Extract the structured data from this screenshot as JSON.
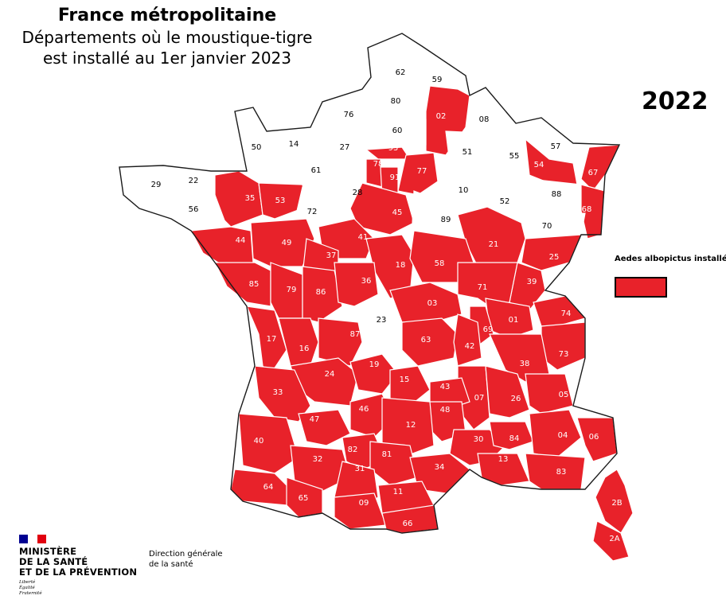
{
  "title": {
    "main": "France métropolitaine",
    "line1": "Départements où le moustique-tigre",
    "line2": "est installé au 1er janvier 2023"
  },
  "year": "2022",
  "legend": {
    "label": "Aedes albopictus installé",
    "color": "#e8222a"
  },
  "colors": {
    "installed": "#e8222a",
    "not_installed": "#ffffff",
    "border": "#ffffff",
    "outline": "#1a1a1a"
  },
  "departments": [
    {
      "code": "62",
      "installed": false
    },
    {
      "code": "59",
      "installed": false
    },
    {
      "code": "80",
      "installed": false
    },
    {
      "code": "02",
      "installed": true
    },
    {
      "code": "60",
      "installed": false
    },
    {
      "code": "76",
      "installed": false
    },
    {
      "code": "08",
      "installed": false
    },
    {
      "code": "57",
      "installed": false
    },
    {
      "code": "50",
      "installed": false
    },
    {
      "code": "14",
      "installed": false
    },
    {
      "code": "27",
      "installed": false
    },
    {
      "code": "95",
      "installed": true
    },
    {
      "code": "51",
      "installed": false
    },
    {
      "code": "55",
      "installed": false
    },
    {
      "code": "67",
      "installed": true
    },
    {
      "code": "78",
      "installed": true
    },
    {
      "code": "77",
      "installed": true
    },
    {
      "code": "54",
      "installed": true
    },
    {
      "code": "61",
      "installed": false
    },
    {
      "code": "91",
      "installed": true
    },
    {
      "code": "29",
      "installed": false
    },
    {
      "code": "22",
      "installed": false
    },
    {
      "code": "28",
      "installed": false
    },
    {
      "code": "10",
      "installed": false
    },
    {
      "code": "52",
      "installed": false
    },
    {
      "code": "88",
      "installed": false
    },
    {
      "code": "35",
      "installed": true
    },
    {
      "code": "53",
      "installed": true
    },
    {
      "code": "72",
      "installed": false
    },
    {
      "code": "56",
      "installed": false
    },
    {
      "code": "45",
      "installed": true
    },
    {
      "code": "89",
      "installed": false
    },
    {
      "code": "68",
      "installed": true
    },
    {
      "code": "70",
      "installed": false
    },
    {
      "code": "44",
      "installed": true
    },
    {
      "code": "49",
      "installed": true
    },
    {
      "code": "41",
      "installed": true
    },
    {
      "code": "21",
      "installed": true
    },
    {
      "code": "25",
      "installed": true
    },
    {
      "code": "37",
      "installed": true
    },
    {
      "code": "18",
      "installed": true
    },
    {
      "code": "58",
      "installed": true
    },
    {
      "code": "39",
      "installed": true
    },
    {
      "code": "85",
      "installed": true
    },
    {
      "code": "79",
      "installed": true
    },
    {
      "code": "86",
      "installed": true
    },
    {
      "code": "36",
      "installed": true
    },
    {
      "code": "71",
      "installed": true
    },
    {
      "code": "03",
      "installed": true
    },
    {
      "code": "01",
      "installed": true
    },
    {
      "code": "74",
      "installed": true
    },
    {
      "code": "17",
      "installed": true
    },
    {
      "code": "23",
      "installed": false
    },
    {
      "code": "69",
      "installed": true
    },
    {
      "code": "16",
      "installed": true
    },
    {
      "code": "87",
      "installed": true
    },
    {
      "code": "63",
      "installed": true
    },
    {
      "code": "42",
      "installed": true
    },
    {
      "code": "73",
      "installed": true
    },
    {
      "code": "38",
      "installed": true
    },
    {
      "code": "24",
      "installed": true
    },
    {
      "code": "19",
      "installed": true
    },
    {
      "code": "15",
      "installed": true
    },
    {
      "code": "33",
      "installed": true
    },
    {
      "code": "07",
      "installed": true
    },
    {
      "code": "26",
      "installed": true
    },
    {
      "code": "05",
      "installed": true
    },
    {
      "code": "46",
      "installed": true
    },
    {
      "code": "43",
      "installed": true
    },
    {
      "code": "47",
      "installed": true
    },
    {
      "code": "48",
      "installed": true
    },
    {
      "code": "12",
      "installed": true
    },
    {
      "code": "40",
      "installed": true
    },
    {
      "code": "30",
      "installed": true
    },
    {
      "code": "84",
      "installed": true
    },
    {
      "code": "04",
      "installed": true
    },
    {
      "code": "06",
      "installed": true
    },
    {
      "code": "82",
      "installed": true
    },
    {
      "code": "32",
      "installed": true
    },
    {
      "code": "81",
      "installed": true
    },
    {
      "code": "31",
      "installed": true
    },
    {
      "code": "34",
      "installed": true
    },
    {
      "code": "13",
      "installed": true
    },
    {
      "code": "83",
      "installed": true
    },
    {
      "code": "64",
      "installed": true
    },
    {
      "code": "65",
      "installed": true
    },
    {
      "code": "09",
      "installed": true
    },
    {
      "code": "11",
      "installed": true
    },
    {
      "code": "66",
      "installed": true
    },
    {
      "code": "2B",
      "installed": true
    },
    {
      "code": "2A",
      "installed": true
    }
  ],
  "ministry": {
    "line1": "MINISTÈRE",
    "line2": "DE LA SANTÉ",
    "line3": "ET DE LA PRÉVENTION",
    "motto1": "Liberté",
    "motto2": "Égalité",
    "motto3": "Fraternité",
    "flag_colors": [
      "#000091",
      "#ffffff",
      "#e1000f"
    ]
  },
  "direction": {
    "line1": "Direction générale",
    "line2": "de la santé"
  }
}
